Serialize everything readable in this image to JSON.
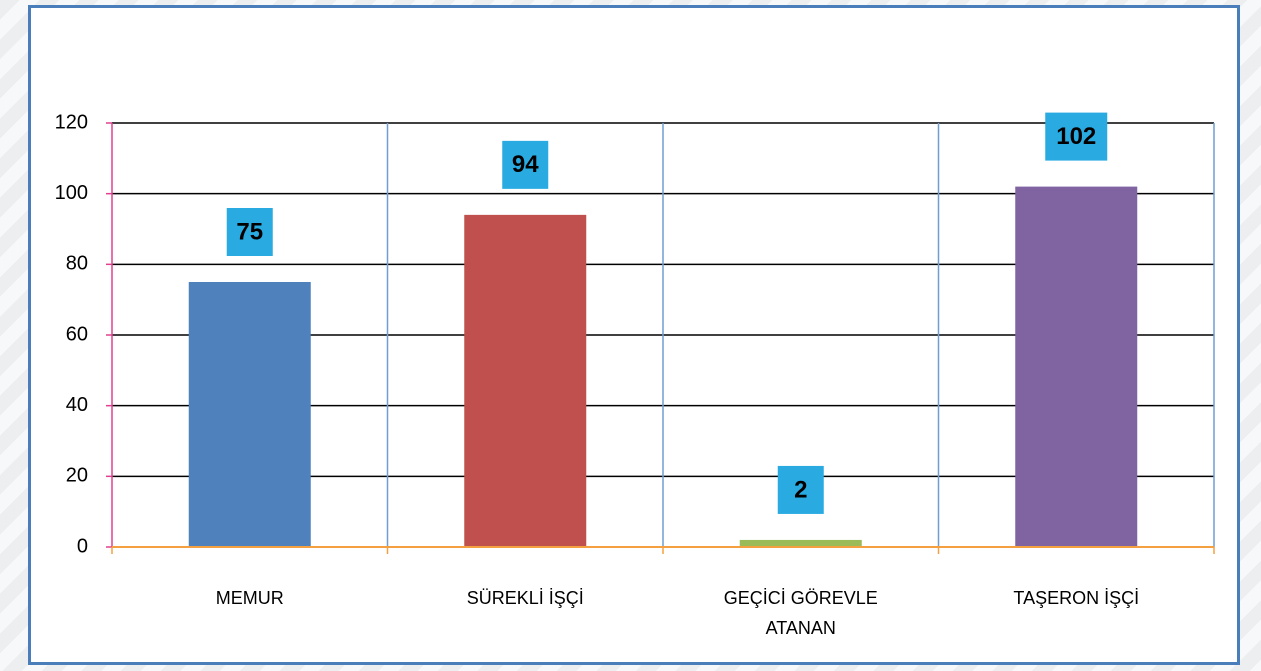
{
  "chart_data": {
    "type": "bar",
    "categories": [
      "MEMUR",
      "SÜREKLİ İŞÇİ",
      "GEÇİCİ GÖREVLE ATANAN",
      "TAŞERON İŞÇİ"
    ],
    "values": [
      75,
      94,
      2,
      102
    ],
    "colors": [
      "#4f81bd",
      "#c0504d",
      "#9bbb59",
      "#8064a2"
    ],
    "label_box_color": "#29abe2",
    "ylim": [
      0,
      120
    ],
    "yticks": [
      0,
      20,
      40,
      60,
      80,
      100,
      120
    ],
    "grid": true
  }
}
